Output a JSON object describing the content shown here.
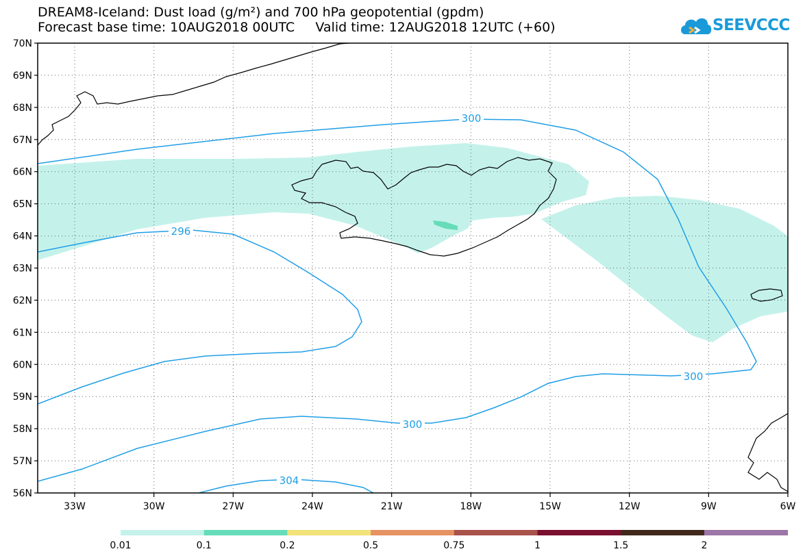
{
  "title": {
    "line1": "DREAM8-Iceland: Dust load (g/m²) and 700 hPa geopotential (gpdm)",
    "line2": "Forecast base time: 10AUG2018 00UTC     Valid time: 12AUG2018 12UTC (+60)"
  },
  "logo": {
    "text": "SEEVCCC",
    "icon": "cloud-icon"
  },
  "map": {
    "lon_range": [
      -34.4,
      -6
    ],
    "lat_range": [
      56,
      70
    ],
    "lon_ticks": [
      "33W",
      "30W",
      "27W",
      "24W",
      "21W",
      "18W",
      "15W",
      "12W",
      "9W",
      "6W"
    ],
    "lat_ticks": [
      "56N",
      "57N",
      "58N",
      "59N",
      "60N",
      "61N",
      "62N",
      "63N",
      "64N",
      "65N",
      "66N",
      "67N",
      "68N",
      "69N",
      "70N"
    ],
    "grid": "dotted",
    "contour_color": "#1f9ee6",
    "contour_labels": [
      "296",
      "300",
      "300",
      "300",
      "304"
    ]
  },
  "colorbar": {
    "labels": [
      "0.01",
      "0.1",
      "0.2",
      "0.5",
      "0.75",
      "1",
      "1.5",
      "2"
    ],
    "colors": [
      "#c4f2eb",
      "#66dcb8",
      "#f2e27a",
      "#e69262",
      "#a8524a",
      "#7a1030",
      "#40281a",
      "#9c76a6"
    ]
  }
}
